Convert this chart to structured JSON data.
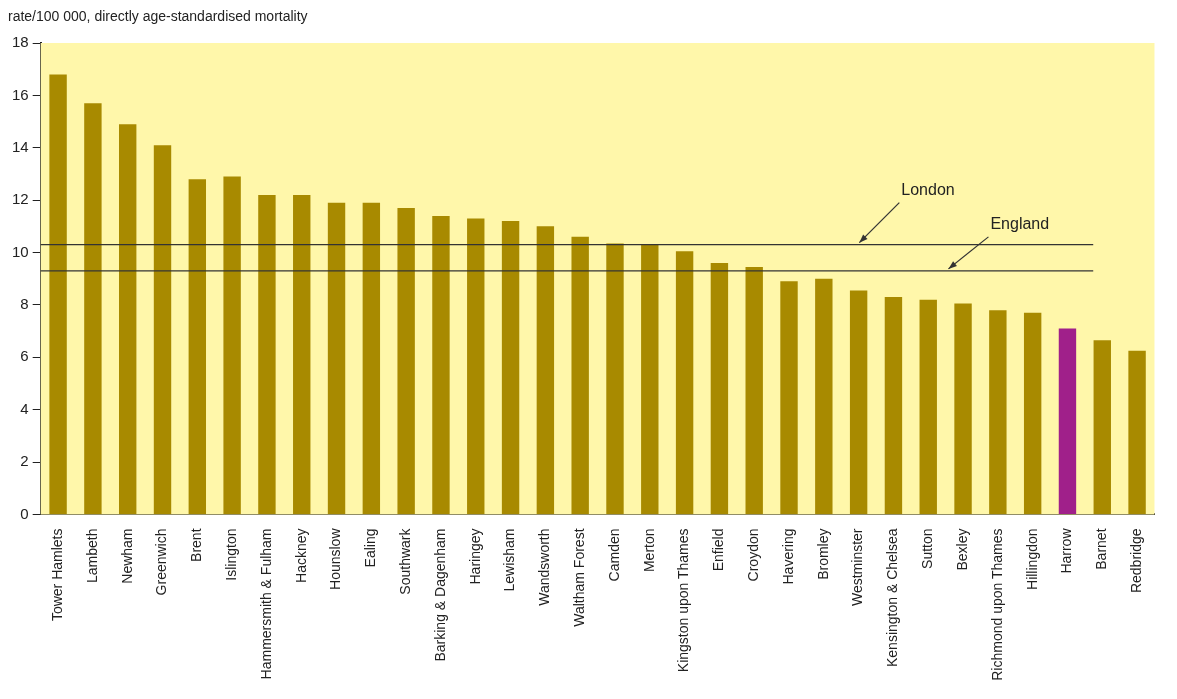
{
  "chart_data": {
    "type": "bar",
    "ylabel": "rate/100 000, directly age-standardised mortality",
    "categories": [
      "Tower Hamlets",
      "Lambeth",
      "Newham",
      "Greenwich",
      "Brent",
      "Islington",
      "Hammersmith & Fulham",
      "Hackney",
      "Hounslow",
      "Ealing",
      "Southwark",
      "Barking & Dagenham",
      "Haringey",
      "Lewisham",
      "Wandsworth",
      "Waltham Forest",
      "Camden",
      "Merton",
      "Kingston upon Thames",
      "Enfield",
      "Croydon",
      "Havering",
      "Bromley",
      "Westminster",
      "Kensington & Chelsea",
      "Sutton",
      "Bexley",
      "Richmond upon Thames",
      "Hillingdon",
      "Harrow",
      "Barnet",
      "Redbridge"
    ],
    "values": [
      16.8,
      15.7,
      14.9,
      14.1,
      12.8,
      12.9,
      12.2,
      12.2,
      11.9,
      11.9,
      11.7,
      11.4,
      11.3,
      11.2,
      11.0,
      10.6,
      10.35,
      10.3,
      10.05,
      9.6,
      9.45,
      8.9,
      9.0,
      8.55,
      8.3,
      8.2,
      8.05,
      7.8,
      7.7,
      7.1,
      6.65,
      6.25
    ],
    "colors": [
      "#a88a00",
      "#a88a00",
      "#a88a00",
      "#a88a00",
      "#a88a00",
      "#a88a00",
      "#a88a00",
      "#a88a00",
      "#a88a00",
      "#a88a00",
      "#a88a00",
      "#a88a00",
      "#a88a00",
      "#a88a00",
      "#a88a00",
      "#a88a00",
      "#a88a00",
      "#a88a00",
      "#a88a00",
      "#a88a00",
      "#a88a00",
      "#a88a00",
      "#a88a00",
      "#a88a00",
      "#a88a00",
      "#a88a00",
      "#a88a00",
      "#a88a00",
      "#a88a00",
      "#a0208a",
      "#a88a00",
      "#a88a00"
    ],
    "ylim": [
      0,
      18
    ],
    "yticks": [
      0,
      2,
      4,
      6,
      8,
      10,
      12,
      14,
      16,
      18
    ],
    "ref_lines": [
      {
        "axis": "y",
        "value": 10.3,
        "label": "London",
        "color": "#333333"
      },
      {
        "axis": "y",
        "value": 9.3,
        "label": "England",
        "color": "#333333"
      }
    ],
    "grid": false,
    "legend": false
  }
}
